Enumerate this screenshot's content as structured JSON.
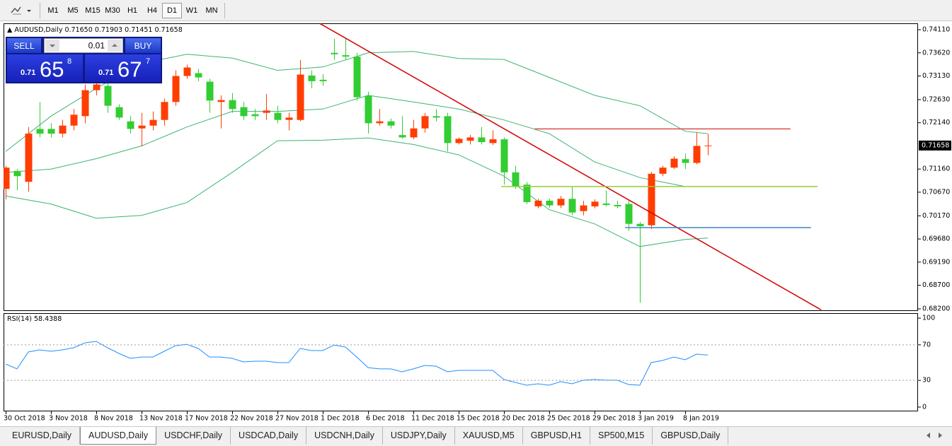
{
  "toolbar": {
    "timeframes": [
      "M1",
      "M5",
      "M15",
      "M30",
      "H1",
      "H4",
      "D1",
      "W1",
      "MN"
    ],
    "active_index": 6
  },
  "trade_panel": {
    "sell_label": "SELL",
    "buy_label": "BUY",
    "lot": "0.01",
    "sell_price": [
      "0.71",
      "65",
      "8"
    ],
    "buy_price": [
      "0.71",
      "67",
      "7"
    ]
  },
  "tabs": {
    "items": [
      "EURUSD,Daily",
      "AUDUSD,Daily",
      "USDCHF,Daily",
      "USDCAD,Daily",
      "USDCNH,Daily",
      "USDJPY,Daily",
      "XAUUSD,M5",
      "GBPUSD,H1",
      "SP500,M15",
      "GBPUSD,Daily"
    ],
    "active_index": 1
  },
  "chart_data": [
    {
      "type": "candlestick",
      "title": "AUDUSD,Daily",
      "ohlc_labels": [
        "0.71650",
        "0.71903",
        "0.71451",
        "0.71658"
      ],
      "up_color": "#ff3d00",
      "down_color": "#32cd32",
      "categories": [
        "30 Oct 2018",
        null,
        null,
        null,
        "3 Nov 2018",
        null,
        null,
        null,
        "8 Nov 2018",
        null,
        null,
        null,
        "13 Nov 2018",
        null,
        null,
        null,
        "17 Nov 2018",
        null,
        null,
        null,
        "22 Nov 2018",
        null,
        null,
        null,
        "27 Nov 2018",
        null,
        null,
        null,
        "1 Dec 2018",
        null,
        null,
        null,
        "6 Dec 2018",
        null,
        null,
        null,
        "11 Dec 2018",
        null,
        null,
        null,
        "15 Dec 2018",
        null,
        null,
        null,
        "20 Dec 2018",
        null,
        null,
        null,
        "25 Dec 2018",
        null,
        null,
        null,
        "29 Dec 2018",
        null,
        null,
        null,
        "3 Jan 2019",
        null,
        null,
        null,
        "8 Jan 2019",
        null,
        null
      ],
      "open": [
        0.7074,
        0.7112,
        0.7089,
        0.7201,
        0.7201,
        0.7191,
        0.7208,
        0.7228,
        0.7283,
        0.7292,
        0.7247,
        0.7217,
        0.7202,
        0.7208,
        0.722,
        0.7258,
        0.7313,
        0.7319,
        0.7301,
        0.7258,
        0.7262,
        0.7247,
        0.7232,
        0.7235,
        0.7235,
        0.722,
        0.722,
        0.7314,
        0.7305,
        0.7362,
        0.7357,
        0.7354,
        0.7271,
        0.7213,
        0.7217,
        0.7188,
        0.7183,
        0.7202,
        0.7228,
        0.7228,
        0.7171,
        0.7176,
        0.7183,
        0.7171,
        0.7179,
        0.7109,
        0.7083,
        0.7037,
        0.7049,
        0.7039,
        0.7053,
        0.7027,
        0.7037,
        0.7043,
        0.704,
        0.7042,
        0.7,
        0.6997,
        0.7106,
        0.7119,
        0.7137,
        0.7129,
        0.7165
      ],
      "high": [
        0.7123,
        0.7116,
        0.7205,
        0.7258,
        0.7213,
        0.722,
        0.7243,
        0.7295,
        0.731,
        0.7298,
        0.7253,
        0.7228,
        0.7235,
        0.7238,
        0.7265,
        0.7325,
        0.7337,
        0.7328,
        0.7307,
        0.7272,
        0.7277,
        0.7258,
        0.7243,
        0.7275,
        0.725,
        0.7235,
        0.7347,
        0.7325,
        0.7317,
        0.7392,
        0.7392,
        0.7362,
        0.728,
        0.7243,
        0.7223,
        0.7228,
        0.722,
        0.7235,
        0.7243,
        0.7235,
        0.7183,
        0.7188,
        0.7205,
        0.7198,
        0.7183,
        0.7123,
        0.7089,
        0.7053,
        0.7053,
        0.7059,
        0.7079,
        0.7049,
        0.7052,
        0.7071,
        0.7049,
        0.7049,
        0.7004,
        0.711,
        0.7123,
        0.7143,
        0.7149,
        0.7193,
        0.71903
      ],
      "low": [
        0.7052,
        0.7071,
        0.7068,
        0.7183,
        0.7183,
        0.7183,
        0.7198,
        0.7213,
        0.7272,
        0.7235,
        0.722,
        0.7191,
        0.7164,
        0.7198,
        0.7208,
        0.725,
        0.7307,
        0.7302,
        0.7235,
        0.7202,
        0.7235,
        0.722,
        0.722,
        0.722,
        0.7213,
        0.7198,
        0.7217,
        0.7287,
        0.7292,
        0.7347,
        0.7347,
        0.7261,
        0.7191,
        0.7208,
        0.7202,
        0.718,
        0.7179,
        0.7193,
        0.7217,
        0.7153,
        0.7168,
        0.7168,
        0.7168,
        0.7167,
        0.7083,
        0.7074,
        0.7042,
        0.7033,
        0.7034,
        0.7033,
        0.7018,
        0.7018,
        0.7033,
        0.7037,
        0.7033,
        0.6985,
        0.6833,
        0.6989,
        0.7101,
        0.7116,
        0.7116,
        0.7126,
        0.71451
      ],
      "close": [
        0.7119,
        0.7101,
        0.7191,
        0.7191,
        0.7191,
        0.7208,
        0.7231,
        0.7283,
        0.7295,
        0.725,
        0.7225,
        0.7201,
        0.7208,
        0.722,
        0.7258,
        0.7313,
        0.7331,
        0.731,
        0.7261,
        0.7262,
        0.7243,
        0.7228,
        0.7228,
        0.724,
        0.722,
        0.7225,
        0.7316,
        0.7302,
        0.7302,
        0.7359,
        0.7354,
        0.7268,
        0.7213,
        0.7217,
        0.7208,
        0.7183,
        0.7202,
        0.7228,
        0.7225,
        0.7171,
        0.718,
        0.7183,
        0.7173,
        0.7179,
        0.7109,
        0.7079,
        0.7046,
        0.7049,
        0.7039,
        0.7053,
        0.7024,
        0.7039,
        0.7047,
        0.704,
        0.7037,
        0.7,
        0.6995,
        0.7106,
        0.7119,
        0.7138,
        0.7129,
        0.7165,
        0.71658
      ],
      "bands_color": "#3cb371",
      "bands": [
        {
          "x": [
            0,
            4,
            8,
            12,
            16,
            20,
            24,
            28,
            32,
            36,
            40,
            44,
            48,
            52,
            56,
            60,
            62
          ],
          "values": [
            0.7153,
            0.7228,
            0.7287,
            0.734,
            0.7359,
            0.7351,
            0.7325,
            0.7332,
            0.7362,
            0.7365,
            0.735,
            0.7348,
            0.731,
            0.7272,
            0.725,
            0.7196,
            0.7191
          ]
        },
        {
          "x": [
            0,
            4,
            8,
            12,
            16,
            20,
            24,
            28,
            32,
            36,
            40,
            44,
            48,
            52,
            56,
            60
          ],
          "values": [
            0.7109,
            0.7116,
            0.7138,
            0.7165,
            0.7205,
            0.7238,
            0.7238,
            0.7243,
            0.7272,
            0.7258,
            0.7243,
            0.722,
            0.7191,
            0.7131,
            0.7098,
            0.7079
          ]
        },
        {
          "x": [
            0,
            4,
            8,
            12,
            16,
            20,
            24,
            28,
            32,
            36,
            40,
            44,
            48,
            52,
            56,
            60,
            62
          ],
          "values": [
            0.7059,
            0.7042,
            0.7012,
            0.7018,
            0.7045,
            0.7109,
            0.7176,
            0.7177,
            0.7182,
            0.7168,
            0.7146,
            0.7101,
            0.703,
            0.7,
            0.6952,
            0.6967,
            0.697
          ]
        }
      ],
      "objects": [
        {
          "color": "#d40000",
          "x": [
            27.75,
            72
          ],
          "y": [
            0.7424,
            0.6818
          ]
        },
        {
          "color": "#e04a4a",
          "x": [
            46.7,
            69.3
          ],
          "y": [
            0.7201,
            0.7201
          ]
        },
        {
          "color": "#9acd32",
          "x": [
            43.75,
            71.7
          ],
          "y": [
            0.7079,
            0.7079
          ]
        },
        {
          "color": "#3d85c6",
          "x": [
            54.7,
            71.1
          ],
          "y": [
            0.6992,
            0.6992
          ]
        }
      ],
      "ylim": [
        0.68155,
        0.74245
      ],
      "yticks": [
        {
          "value": 0.7411,
          "label": "0.74110"
        },
        {
          "value": 0.7362,
          "label": "0.73620"
        },
        {
          "value": 0.7313,
          "label": "0.73130"
        },
        {
          "value": 0.7263,
          "label": "0.72630"
        },
        {
          "value": 0.7214,
          "label": "0.72140"
        },
        {
          "value": 0.7116,
          "label": "0.71160"
        },
        {
          "value": 0.7067,
          "label": "0.70670"
        },
        {
          "value": 0.7017,
          "label": "0.70170"
        },
        {
          "value": 0.6968,
          "label": "0.69680"
        },
        {
          "value": 0.6919,
          "label": "0.69190"
        },
        {
          "value": 0.687,
          "label": "0.68700"
        },
        {
          "value": 0.682,
          "label": "0.68200"
        }
      ],
      "grid": false
    },
    {
      "type": "line",
      "title": "RSI(14)",
      "color": "#1e90ff",
      "values": [
        48.4,
        42.9,
        61.9,
        64.3,
        62.7,
        64.3,
        66.7,
        72.2,
        73.8,
        66.7,
        60.3,
        54.8,
        56.3,
        56.3,
        62.7,
        69.0,
        70.6,
        65.9,
        56.3,
        56.3,
        54.8,
        50.8,
        51.6,
        51.6,
        50.0,
        50.0,
        65.9,
        63.5,
        63.5,
        69.8,
        67.5,
        56.3,
        44.4,
        42.9,
        42.9,
        39.7,
        42.9,
        46.8,
        46.0,
        39.7,
        41.3,
        41.3,
        41.3,
        41.3,
        31.0,
        27.8,
        24.6,
        26.2,
        24.6,
        28.6,
        26.2,
        30.2,
        31.0,
        30.2,
        30.2,
        25.4,
        24.6,
        50.0,
        52.4,
        56.3,
        53.2,
        59.5,
        58.4388
      ],
      "ylim": [
        -4.8,
        105.6
      ],
      "yticks": [
        100,
        70,
        30,
        0
      ],
      "grid": true
    }
  ]
}
